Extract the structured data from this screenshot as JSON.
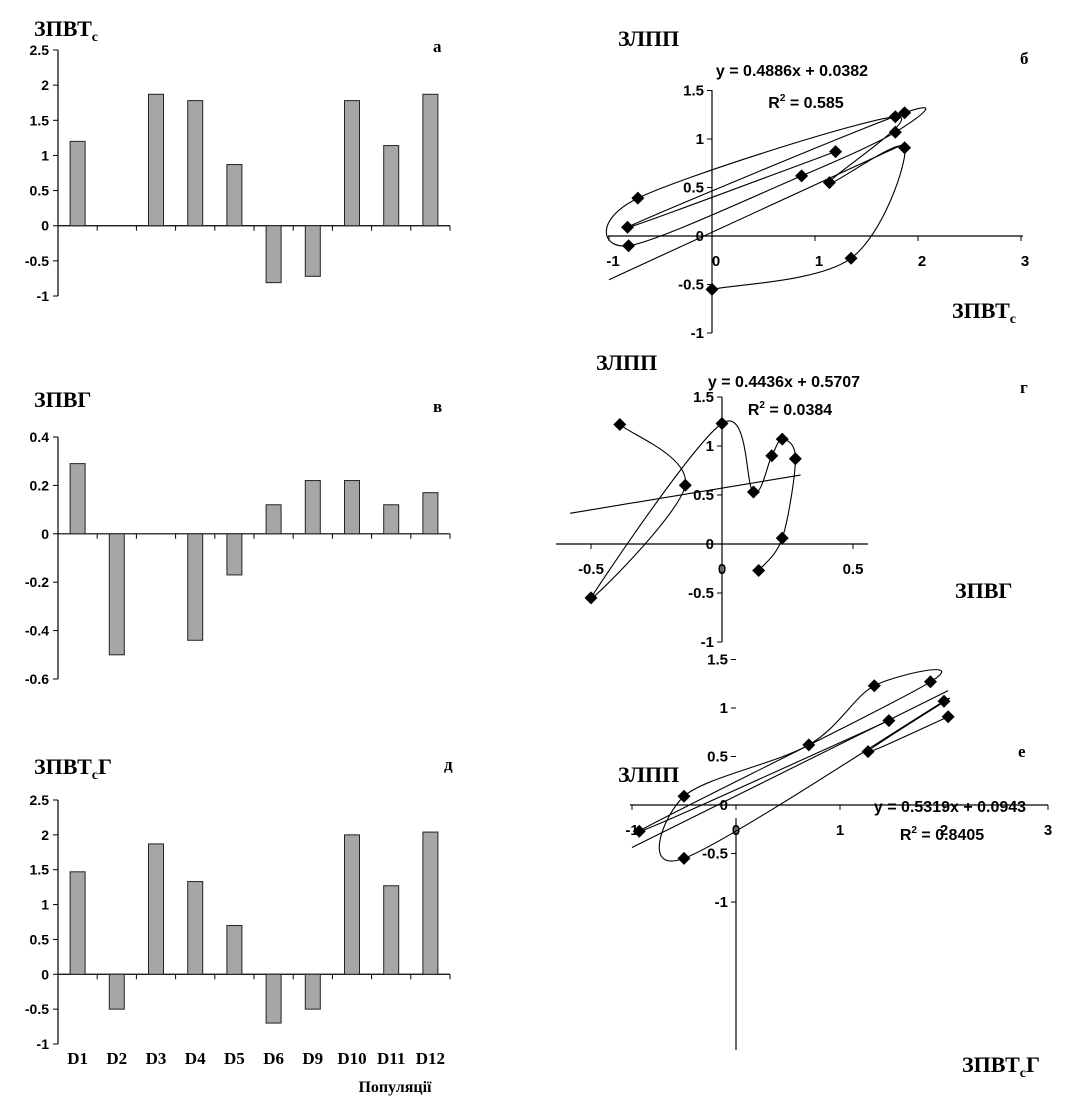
{
  "figure": {
    "colors": {
      "bar_fill": "#a6a6a6",
      "bar_stroke": "#222222",
      "axis": "#000000",
      "marker": "#000000"
    },
    "marker": "diamond-icon"
  },
  "chart_data": [
    {
      "id": "a",
      "type": "bar",
      "panel_letter": "а",
      "ylabel_main": "ЗПВТ",
      "ylabel_sub": "с",
      "categories": [
        "D1",
        "D2",
        "D3",
        "D4",
        "D5",
        "D6",
        "D9",
        "D10",
        "D11",
        "D12"
      ],
      "values": [
        1.2,
        0,
        1.87,
        1.78,
        0.87,
        -0.81,
        -0.72,
        1.78,
        1.14,
        1.87
      ],
      "ylim": [
        -1,
        2.5
      ],
      "yticks": [
        -1,
        -0.5,
        0,
        0.5,
        1,
        1.5,
        2,
        2.5
      ],
      "ytick_labels": [
        "-1",
        "-0.5",
        "0",
        "0.5",
        "1",
        "1.5",
        "2",
        "2.5"
      ],
      "grid": false
    },
    {
      "id": "b",
      "type": "scatter",
      "panel_letter": "б",
      "ylabel": "ЗЛПП",
      "xlabel_main": "ЗПВТ",
      "xlabel_sub": "с",
      "equation": "y = 0.4886x + 0.0382",
      "r2_label": "R",
      "r2_exp": "2",
      "r2_value": " = 0.585",
      "x": [
        1.2,
        -0.82,
        1.87,
        1.78,
        0.87,
        -0.81,
        -0.72,
        1.78,
        1.14,
        1.87
      ],
      "y": [
        0.87,
        0.09,
        1.27,
        1.07,
        0.62,
        -0.1,
        0.39,
        1.23,
        0.55,
        0.91
      ],
      "extra_points": {
        "x": [
          1.35,
          0.0
        ],
        "y": [
          -0.23,
          -0.55
        ]
      },
      "xlim": [
        -1,
        3
      ],
      "ylim": [
        -1,
        1.5
      ],
      "xticks": [
        -1,
        0,
        1,
        2,
        3
      ],
      "xtick_labels": [
        "-1",
        "0",
        "1",
        "2",
        "3"
      ],
      "yticks": [
        -1,
        -0.5,
        0,
        0.5,
        1,
        1.5
      ],
      "ytick_labels": [
        "-1",
        "-0.5",
        "0",
        "0.5",
        "1",
        "1.5"
      ],
      "trendline": {
        "slope": 0.4886,
        "intercept": 0.0382
      }
    },
    {
      "id": "c",
      "type": "bar",
      "panel_letter": "в",
      "ylabel_main": "ЗПВГ",
      "categories": [
        "D1",
        "D2",
        "D3",
        "D4",
        "D5",
        "D6",
        "D9",
        "D10",
        "D11",
        "D12"
      ],
      "values": [
        0.29,
        -0.5,
        0,
        -0.44,
        -0.17,
        0.12,
        0.22,
        0.22,
        0.12,
        0.17
      ],
      "ylim": [
        -0.6,
        0.4
      ],
      "yticks": [
        -0.6,
        -0.4,
        -0.2,
        0,
        0.2,
        0.4
      ],
      "ytick_labels": [
        "-0.6",
        "-0.4",
        "-0.2",
        "0",
        "0.2",
        "0.4"
      ],
      "grid": false
    },
    {
      "id": "d",
      "type": "scatter",
      "panel_letter": "г",
      "ylabel": "ЗЛПП",
      "xlabel_main": "ЗПВГ",
      "equation": "y = 0.4436x + 0.5707",
      "r2_label": "R",
      "r2_exp": "2",
      "r2_value": " = 0.0384",
      "x": [
        -0.39,
        -0.14,
        -0.5,
        0.0,
        0.12,
        0.19,
        0.23,
        0.28,
        0.23,
        0.14
      ],
      "y": [
        1.22,
        0.6,
        -0.55,
        1.23,
        0.53,
        0.9,
        1.07,
        0.87,
        0.06,
        -0.27
      ],
      "xlim": [
        -0.6,
        0.5
      ],
      "ylim": [
        -1,
        1.5
      ],
      "xticks": [
        -0.5,
        0,
        0.5
      ],
      "xtick_labels": [
        "-0.5",
        "0",
        "0.5"
      ],
      "yticks": [
        -1,
        -0.5,
        0,
        0.5,
        1,
        1.5
      ],
      "ytick_labels": [
        "-1",
        "-0.5",
        "0",
        "0.5",
        "1",
        "1.5"
      ],
      "trendline": {
        "slope": 0.4436,
        "intercept": 0.5707,
        "xrange": [
          -0.58,
          0.3
        ]
      }
    },
    {
      "id": "e",
      "type": "bar",
      "panel_letter": "д",
      "ylabel_main": "ЗПВТ",
      "ylabel_sub": "с",
      "ylabel_tail": "Г",
      "xlabel": "Популяції",
      "categories": [
        "D1",
        "D2",
        "D3",
        "D4",
        "D5",
        "D6",
        "D9",
        "D10",
        "D11",
        "D12"
      ],
      "values": [
        1.47,
        -0.5,
        1.87,
        1.33,
        0.7,
        -0.7,
        -0.5,
        2.0,
        1.27,
        2.04
      ],
      "ylim": [
        -1,
        2.5
      ],
      "yticks": [
        -1,
        -0.5,
        0,
        0.5,
        1,
        1.5,
        2,
        2.5
      ],
      "ytick_labels": [
        "-1",
        "-0.5",
        "0",
        "0.5",
        "1",
        "1.5",
        "2",
        "2.5"
      ],
      "grid": false
    },
    {
      "id": "f",
      "type": "scatter",
      "panel_letter": "е",
      "ylabel": "ЗЛПП",
      "xlabel_main": "ЗПВТ",
      "xlabel_sub": "с",
      "xlabel_tail": "Г",
      "equation": "y = 0.5319x + 0.0943",
      "r2_label": "R",
      "r2_exp": "2",
      "r2_value": " = 0.8405",
      "x": [
        1.47,
        -0.93,
        1.87,
        1.33,
        0.7,
        -0.5,
        -0.5,
        2.0,
        1.27,
        2.04
      ],
      "y": [
        0.87,
        -0.27,
        1.27,
        1.23,
        0.62,
        0.09,
        -0.55,
        1.07,
        0.55,
        0.91
      ],
      "xlim": [
        -1,
        3
      ],
      "ylim": [
        -1,
        1.5
      ],
      "xticks": [
        -1,
        0,
        1,
        2,
        3
      ],
      "xtick_labels": [
        "-1",
        "0",
        "1",
        "2",
        "3"
      ],
      "yticks": [
        -1,
        -0.5,
        0,
        0.5,
        1,
        1.5
      ],
      "ytick_labels": [
        "-1",
        "-0.5",
        "0",
        "0.5",
        "1",
        "1.5"
      ],
      "trendline": {
        "slope": 0.5319,
        "intercept": 0.0943
      }
    }
  ]
}
